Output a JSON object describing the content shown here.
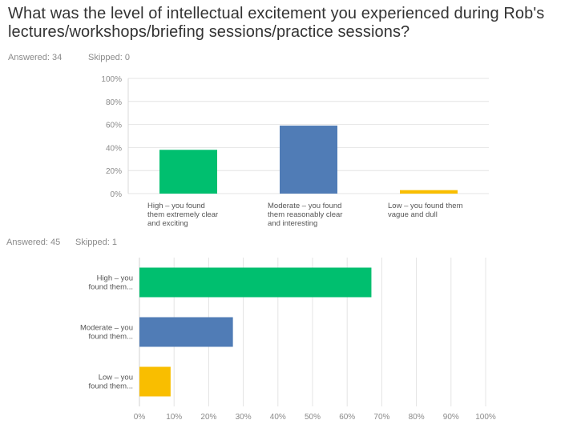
{
  "title": "What was the level of intellectual excitement you experienced during Rob's lectures/workshops/briefing sessions/practice sessions?",
  "survey1": {
    "answered": "Answered: 34",
    "skipped": "Skipped: 0"
  },
  "survey2": {
    "answered": "Answered: 45",
    "skipped": "Skipped: 1"
  },
  "chart_data": [
    {
      "type": "bar",
      "orientation": "vertical",
      "categories": [
        "High - you found them extremely clear and exciting",
        "Moderate - you found them reasonably clear and interesting",
        "Low - you found them vague and dull"
      ],
      "category_lines": [
        [
          "High – you found",
          "them extremely clear",
          "and exciting"
        ],
        [
          "Moderate – you found",
          "them reasonably clear",
          "and interesting"
        ],
        [
          "Low – you found them",
          "vague and dull"
        ]
      ],
      "values": [
        38,
        59,
        3
      ],
      "colors": [
        "#00bf6f",
        "#507cb6",
        "#f9be00"
      ],
      "yticks": [
        "100%",
        "80%",
        "60%",
        "40%",
        "20%",
        "0%"
      ],
      "ylim": [
        0,
        100
      ]
    },
    {
      "type": "bar",
      "orientation": "horizontal",
      "categories": [
        "High - you found them...",
        "Moderate - you found them...",
        "Low - you found them..."
      ],
      "category_lines": [
        [
          "High – you",
          "found them..."
        ],
        [
          "Moderate – you",
          "found them..."
        ],
        [
          "Low – you",
          "found them..."
        ]
      ],
      "values": [
        67,
        27,
        9
      ],
      "colors": [
        "#00bf6f",
        "#507cb6",
        "#f9be00"
      ],
      "xticks": [
        "0%",
        "10%",
        "20%",
        "30%",
        "40%",
        "50%",
        "60%",
        "70%",
        "80%",
        "90%",
        "100%"
      ],
      "xlim": [
        0,
        100
      ]
    }
  ]
}
